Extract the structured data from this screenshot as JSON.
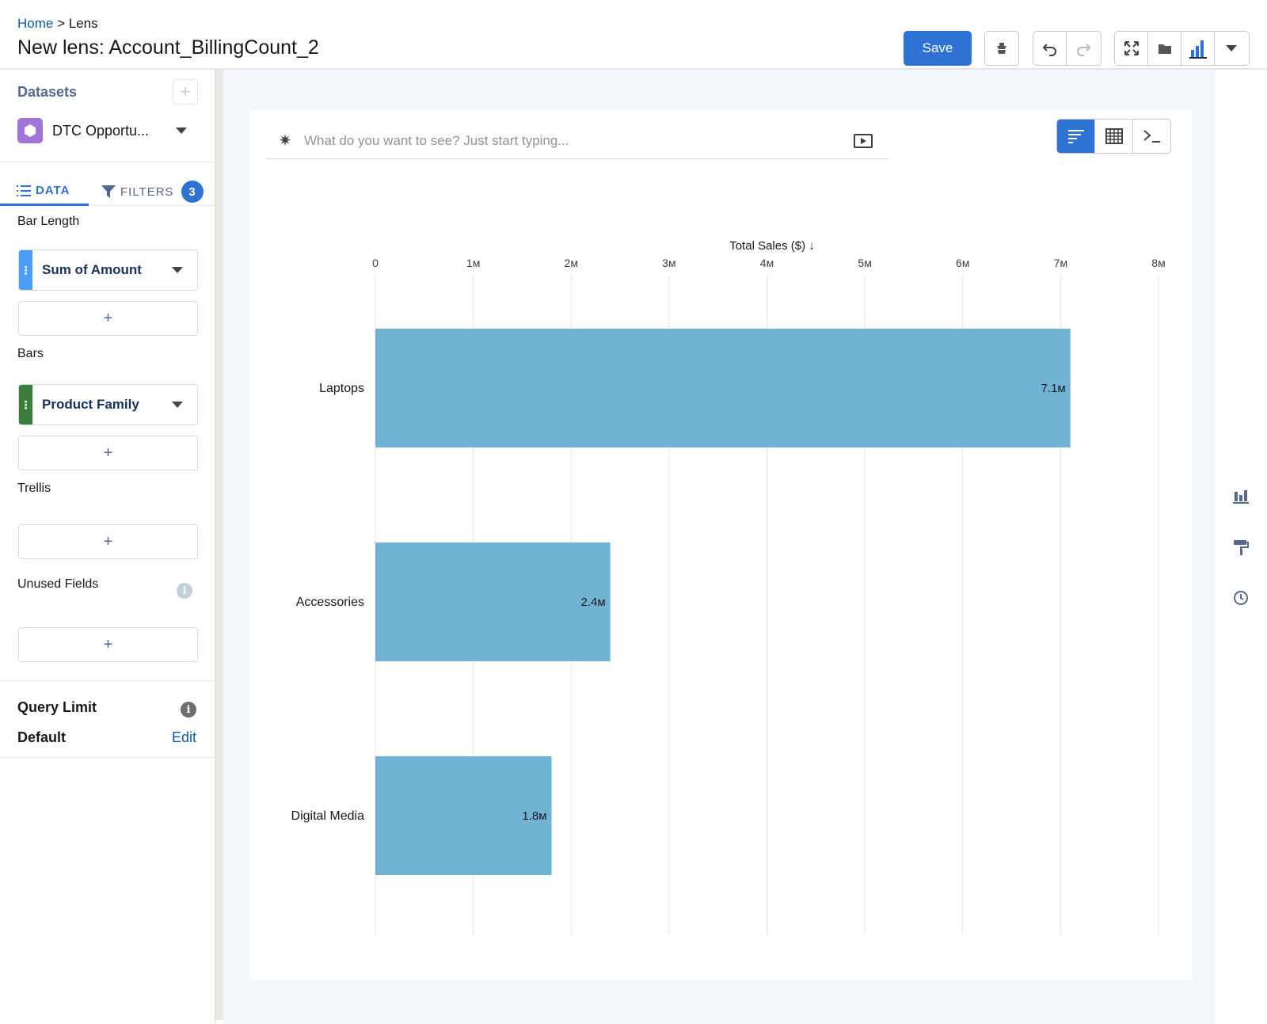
{
  "breadcrumb": {
    "home": "Home",
    "separator": ">",
    "current": "Lens"
  },
  "page_title": "New lens: Account_BillingCount_2",
  "toolbar": {
    "save_label": "Save",
    "icons": [
      "clean-icon",
      "undo-icon",
      "redo-icon",
      "fullscreen-icon",
      "folder-icon",
      "chart-type-icon",
      "more-dropdown-icon"
    ]
  },
  "sidebar": {
    "datasets_title": "Datasets",
    "add_symbol": "+",
    "dataset_name": "DTC Opportu...",
    "tabs": {
      "data": "DATA",
      "filters": "FILTERS",
      "filter_count": "3"
    },
    "bar_length_label": "Bar Length",
    "bar_length_field": "Sum of Amount",
    "bars_label": "Bars",
    "bars_field": "Product Family",
    "trellis_label": "Trellis",
    "unused_fields_label": "Unused Fields",
    "add_label": "+",
    "query_limit_label": "Query Limit",
    "query_limit_value": "Default",
    "query_limit_edit": "Edit",
    "colors": {
      "measure_handle": "#4a9ef7",
      "dimension_handle": "#3b7d3b"
    }
  },
  "search": {
    "placeholder": "What do you want to see? Just start typing..."
  },
  "view_toggle": {
    "active": "chart",
    "options": [
      "chart-icon",
      "table-icon",
      "query-icon"
    ]
  },
  "right_rail": {
    "icons": [
      "chart-properties-icon",
      "format-paint-icon",
      "history-icon"
    ]
  },
  "chart_data": {
    "type": "bar",
    "orientation": "horizontal",
    "title": "Total Sales ($) ↓",
    "categories": [
      "Laptops",
      "Accessories",
      "Digital Media"
    ],
    "values": [
      7.1,
      2.4,
      1.8
    ],
    "value_labels": [
      "7.1м",
      "2.4м",
      "1.8м"
    ],
    "units": "millions",
    "xlim": [
      0,
      8
    ],
    "x_ticks": [
      "0",
      "1м",
      "2м",
      "3м",
      "4м",
      "5м",
      "6м",
      "7м",
      "8м"
    ],
    "grid": true,
    "bar_color": "#70b3d5"
  }
}
